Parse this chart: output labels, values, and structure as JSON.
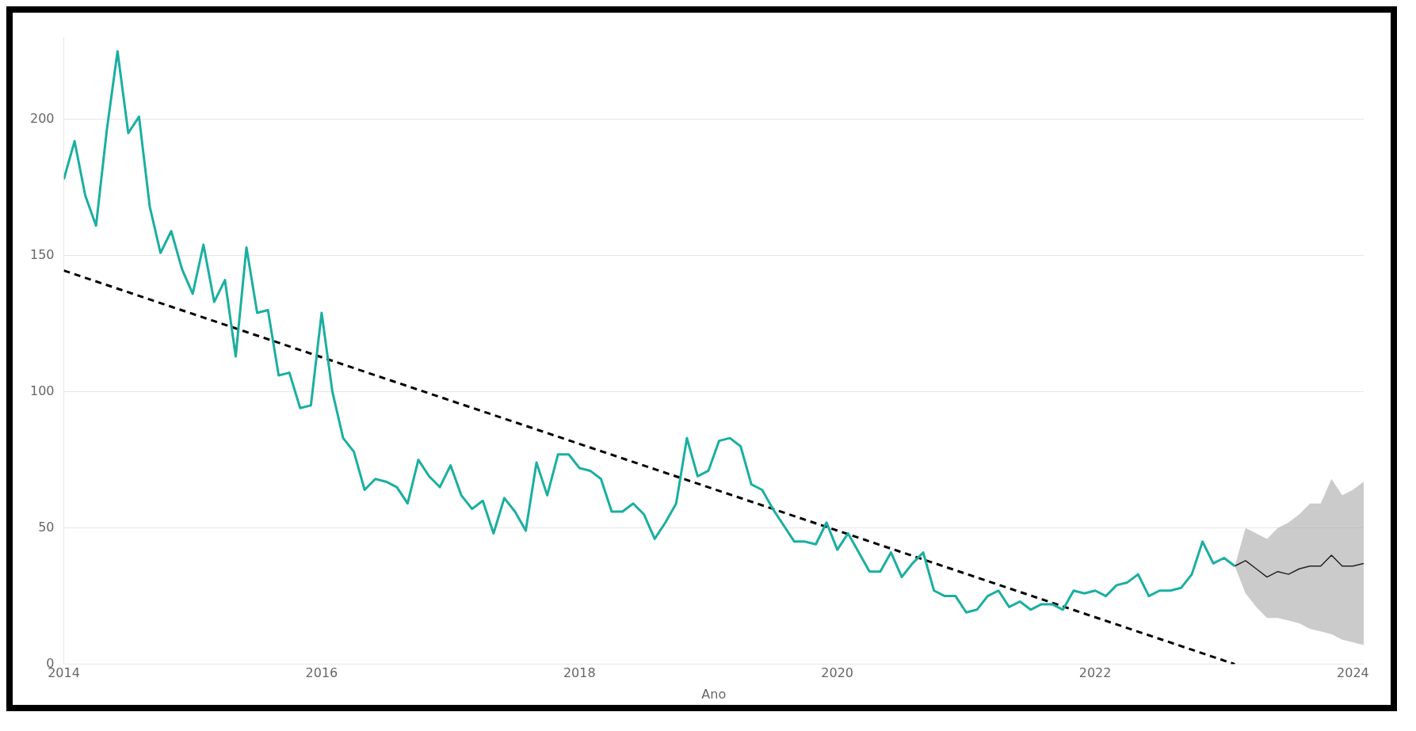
{
  "chart_data": {
    "type": "line",
    "xlabel": "Ano",
    "xlim": [
      "2014-01",
      "2024-02"
    ],
    "xticks": [
      {
        "value": "2014",
        "label": "2014"
      },
      {
        "value": "2016",
        "label": "2016"
      },
      {
        "value": "2018",
        "label": "2018"
      },
      {
        "value": "2020",
        "label": "2020"
      },
      {
        "value": "2022",
        "label": "2022"
      },
      {
        "value": "2024",
        "label": "2024"
      }
    ],
    "ylim": [
      0,
      230
    ],
    "yticks": [
      0,
      50,
      100,
      150,
      200
    ],
    "grid": "y",
    "series": [
      {
        "color": "#1aafa0",
        "x": [
          "2014-01",
          "2014-02",
          "2014-03",
          "2014-04",
          "2014-05",
          "2014-06",
          "2014-07",
          "2014-08",
          "2014-09",
          "2014-10",
          "2014-11",
          "2014-12",
          "2015-01",
          "2015-02",
          "2015-03",
          "2015-04",
          "2015-05",
          "2015-06",
          "2015-07",
          "2015-08",
          "2015-09",
          "2015-10",
          "2015-11",
          "2015-12",
          "2016-01",
          "2016-02",
          "2016-03",
          "2016-04",
          "2016-05",
          "2016-06",
          "2016-07",
          "2016-08",
          "2016-09",
          "2016-10",
          "2016-11",
          "2016-12",
          "2017-01",
          "2017-02",
          "2017-03",
          "2017-04",
          "2017-05",
          "2017-06",
          "2017-07",
          "2017-08",
          "2017-09",
          "2017-10",
          "2017-11",
          "2017-12",
          "2018-01",
          "2018-02",
          "2018-03",
          "2018-04",
          "2018-05",
          "2018-06",
          "2018-07",
          "2018-08",
          "2018-09",
          "2018-10",
          "2018-11",
          "2018-12",
          "2019-01",
          "2019-02",
          "2019-03",
          "2019-04",
          "2019-05",
          "2019-06",
          "2019-07",
          "2019-08",
          "2019-09",
          "2019-10",
          "2019-11",
          "2019-12",
          "2020-01",
          "2020-02",
          "2020-03",
          "2020-04",
          "2020-05",
          "2020-06",
          "2020-07",
          "2020-08",
          "2020-09",
          "2020-10",
          "2020-11",
          "2020-12",
          "2021-01",
          "2021-02",
          "2021-03",
          "2021-04",
          "2021-05",
          "2021-06",
          "2021-07",
          "2021-08",
          "2021-09",
          "2021-10",
          "2021-11",
          "2021-12",
          "2022-01",
          "2022-02",
          "2022-03",
          "2022-04",
          "2022-05",
          "2022-06",
          "2022-07",
          "2022-08",
          "2022-09",
          "2022-10",
          "2022-11",
          "2022-12",
          "2023-01",
          "2023-02"
        ],
        "values": [
          178,
          192,
          172,
          161,
          196,
          225,
          195,
          201,
          168,
          151,
          159,
          145,
          136,
          154,
          133,
          141,
          113,
          153,
          129,
          130,
          106,
          107,
          94,
          95,
          129,
          100,
          83,
          78,
          64,
          68,
          67,
          65,
          59,
          75,
          69,
          65,
          73,
          62,
          57,
          60,
          48,
          61,
          56,
          49,
          74,
          62,
          77,
          77,
          72,
          71,
          68,
          56,
          56,
          59,
          55,
          46,
          52,
          59,
          83,
          69,
          71,
          82,
          83,
          80,
          66,
          64,
          57,
          51,
          45,
          45,
          44,
          52,
          42,
          48,
          41,
          34,
          34,
          41,
          32,
          37,
          41,
          27,
          25,
          25,
          19,
          20,
          25,
          27,
          21,
          23,
          20,
          22,
          22,
          20,
          27,
          26,
          27,
          25,
          29,
          30,
          33,
          25,
          27,
          27,
          28,
          33,
          45,
          37,
          39,
          36
        ]
      },
      {
        "type": "line",
        "color": "#222222",
        "x": [
          "2023-02",
          "2023-03",
          "2023-04",
          "2023-05",
          "2023-06",
          "2023-07",
          "2023-08",
          "2023-09",
          "2023-10",
          "2023-11",
          "2023-12",
          "2024-01",
          "2024-02"
        ],
        "values": [
          36,
          38,
          35,
          32,
          34,
          33,
          35,
          36,
          36,
          40,
          36,
          36,
          37
        ],
        "lower": [
          36,
          26,
          21,
          17,
          17,
          16,
          15,
          13,
          12,
          11,
          9,
          8,
          7
        ],
        "upper": [
          36,
          50,
          48,
          46,
          50,
          52,
          55,
          59,
          59,
          68,
          62,
          64,
          67
        ]
      },
      {
        "type": "line",
        "color": "#000000",
        "line_style": "dashed",
        "x": [
          "2014-01",
          "2023-02"
        ],
        "values": [
          144.5,
          0
        ]
      }
    ]
  }
}
